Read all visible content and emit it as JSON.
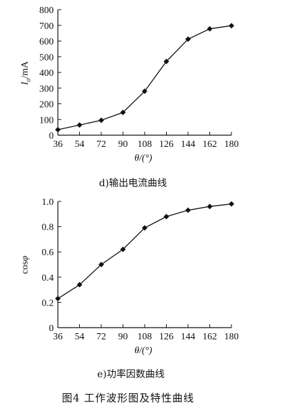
{
  "figure_caption": "图4  工作波形图及特性曲线",
  "chart_data": [
    {
      "type": "line",
      "caption": "d)输出电流曲线",
      "xlabel": "θ/(°)",
      "ylabel": "Io/mA",
      "ylabel_main": "I",
      "ylabel_sub": "o",
      "ylabel_unit": "/mA",
      "xlim": [
        36,
        180
      ],
      "ylim": [
        0,
        800
      ],
      "x_ticks": [
        "36",
        "54",
        "72",
        "90",
        "108",
        "126",
        "144",
        "162",
        "180"
      ],
      "y_ticks": [
        "0",
        "100",
        "200",
        "300",
        "400",
        "500",
        "600",
        "700",
        "800"
      ],
      "x": [
        36,
        54,
        72,
        90,
        108,
        126,
        144,
        162,
        180
      ],
      "values": [
        35,
        65,
        95,
        145,
        280,
        470,
        612,
        678,
        698
      ],
      "marker": "diamond",
      "grid": false
    },
    {
      "type": "line",
      "caption": "e)功率因数曲线",
      "xlabel": "θ/(°)",
      "ylabel": "cosφ",
      "ylabel_main": "cos",
      "ylabel_sym": "φ",
      "xlim": [
        36,
        180
      ],
      "ylim": [
        0,
        1.0
      ],
      "x_ticks": [
        "36",
        "54",
        "72",
        "90",
        "108",
        "126",
        "144",
        "162",
        "180"
      ],
      "y_ticks": [
        "0",
        "0.2",
        "0.4",
        "0.6",
        "0.8",
        "1.0"
      ],
      "x": [
        36,
        54,
        72,
        90,
        108,
        126,
        144,
        162,
        180
      ],
      "values": [
        0.23,
        0.34,
        0.5,
        0.62,
        0.79,
        0.88,
        0.93,
        0.96,
        0.98
      ],
      "marker": "diamond",
      "grid": false
    }
  ]
}
